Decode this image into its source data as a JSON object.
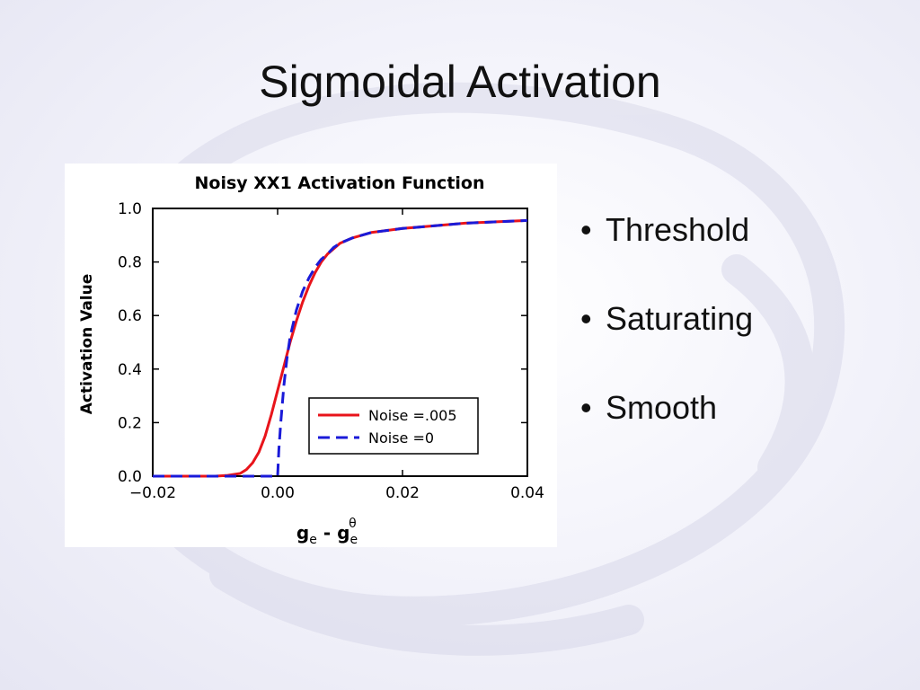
{
  "slide": {
    "title": "Sigmoidal Activation",
    "bullets": [
      "Threshold",
      "Saturating",
      "Smooth"
    ]
  },
  "colors": {
    "noise_005": "#e8141b",
    "noise_0": "#1a1ad8"
  },
  "chart_data": {
    "type": "line",
    "title": "Noisy XX1 Activation Function",
    "ylabel": "Activation Value",
    "xlabel": {
      "base": "g",
      "sub1": "e",
      "mid": " - ",
      "base2": "g",
      "sub2": "e",
      "sup2": "θ"
    },
    "xlim": [
      -0.02,
      0.04
    ],
    "ylim": [
      0.0,
      1.0
    ],
    "xticks": [
      "−0.02",
      "0.00",
      "0.02",
      "0.04"
    ],
    "yticks": [
      "0.0",
      "0.2",
      "0.4",
      "0.6",
      "0.8",
      "1.0"
    ],
    "grid": false,
    "legend_position": "lower-right",
    "series": [
      {
        "name": "Noise =.005",
        "style": "solid",
        "x": [
          -0.02,
          -0.01,
          -0.008,
          -0.006,
          -0.005,
          -0.004,
          -0.003,
          -0.002,
          -0.001,
          0.0,
          0.001,
          0.002,
          0.003,
          0.004,
          0.005,
          0.006,
          0.007,
          0.008,
          0.009,
          0.01,
          0.012,
          0.015,
          0.02,
          0.025,
          0.03,
          0.035,
          0.04
        ],
        "y": [
          0.0,
          0.0,
          0.003,
          0.01,
          0.025,
          0.05,
          0.09,
          0.15,
          0.23,
          0.32,
          0.41,
          0.5,
          0.58,
          0.65,
          0.71,
          0.76,
          0.8,
          0.83,
          0.85,
          0.87,
          0.89,
          0.91,
          0.925,
          0.935,
          0.945,
          0.95,
          0.955
        ]
      },
      {
        "name": "Noise =0",
        "style": "dashed",
        "x": [
          -0.02,
          0.0,
          0.0002,
          0.0005,
          0.001,
          0.0015,
          0.002,
          0.003,
          0.004,
          0.005,
          0.006,
          0.007,
          0.008,
          0.009,
          0.01,
          0.012,
          0.015,
          0.02,
          0.025,
          0.03,
          0.035,
          0.04
        ],
        "y": [
          0.0,
          0.0,
          0.1,
          0.2,
          0.34,
          0.44,
          0.52,
          0.62,
          0.69,
          0.74,
          0.78,
          0.81,
          0.83,
          0.855,
          0.87,
          0.89,
          0.91,
          0.925,
          0.935,
          0.945,
          0.95,
          0.955
        ]
      }
    ]
  }
}
